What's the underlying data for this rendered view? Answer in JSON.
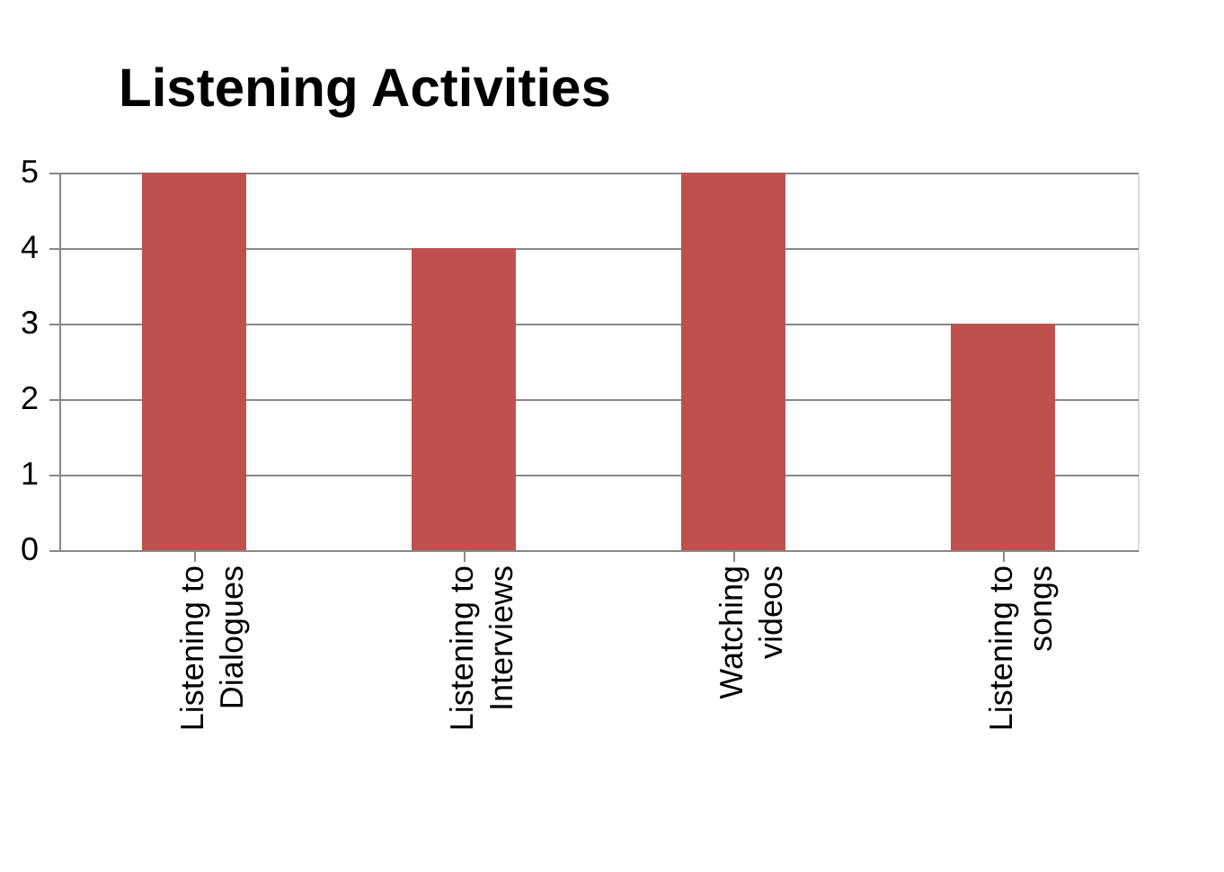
{
  "chart_data": {
    "type": "bar",
    "title": "Listening Activities",
    "categories": [
      "Listening to\nDialogues",
      "Listening to\nInterviews",
      "Watching\nvideos",
      "Listening to\nsongs"
    ],
    "values": [
      5,
      4,
      5,
      3
    ],
    "color": "#c0504d",
    "ylim": [
      0,
      5
    ],
    "yticks": [
      0,
      1,
      2,
      3,
      4,
      5
    ],
    "grid": "y",
    "legend": false
  }
}
